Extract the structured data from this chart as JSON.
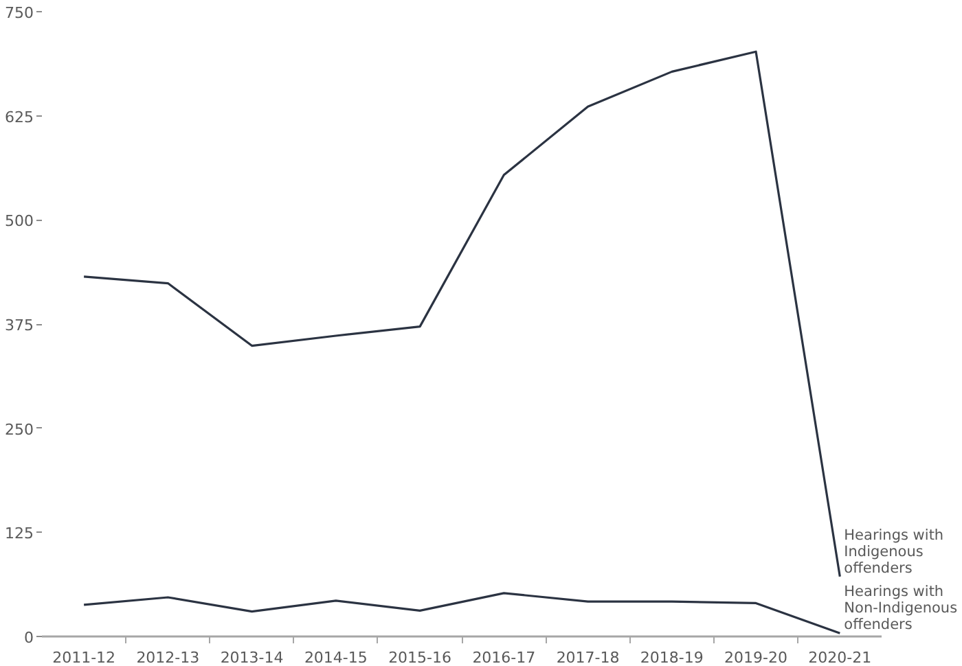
{
  "chart_data": {
    "type": "line",
    "categories": [
      "2011-12",
      "2012-13",
      "2013-14",
      "2014-15",
      "2015-16",
      "2016-17",
      "2017-18",
      "2018-19",
      "2019-20",
      "2020-21"
    ],
    "series": [
      {
        "name": "Hearings with Indigenous offenders",
        "color": "#2b3342",
        "values": [
          432,
          424,
          349,
          361,
          372,
          554,
          636,
          678,
          702,
          72
        ]
      },
      {
        "name": "Hearings with Non-Indigenous offenders",
        "color": "#2b3342",
        "values": [
          38,
          47,
          30,
          43,
          31,
          52,
          42,
          42,
          40,
          4
        ]
      }
    ],
    "ylim": [
      0,
      750
    ],
    "yticks": [
      0,
      125,
      250,
      375,
      500,
      625,
      750
    ],
    "grid": false
  }
}
